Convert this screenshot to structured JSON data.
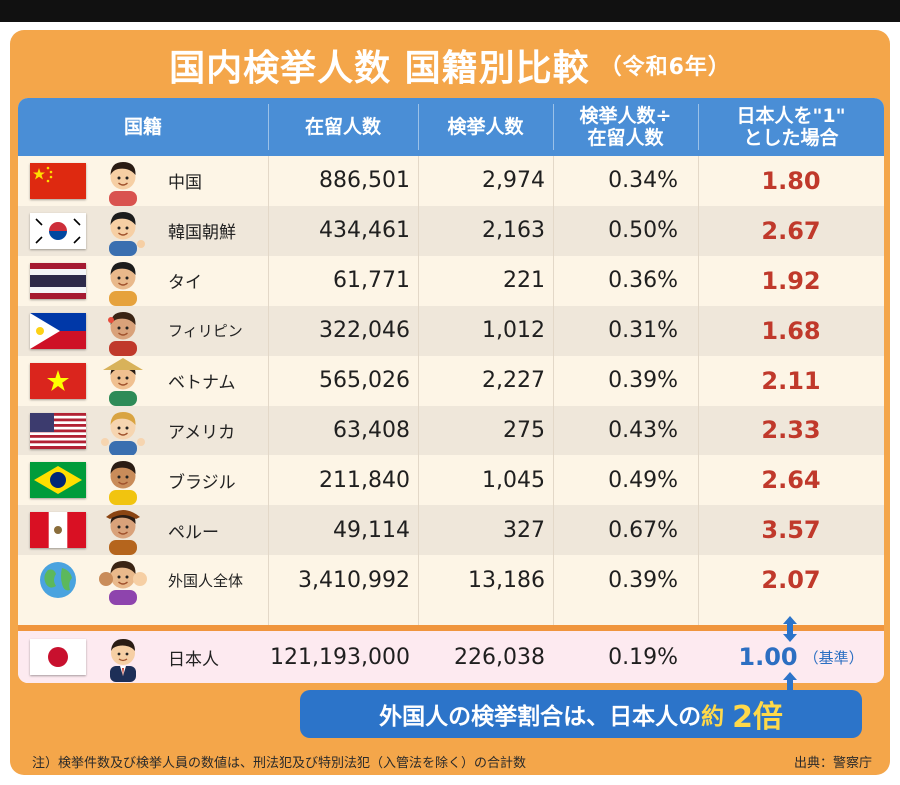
{
  "title": {
    "main": "国内検挙人数 国籍別比較",
    "sub": "（令和6年）"
  },
  "headers": {
    "nationality": "国籍",
    "residents": "在留人数",
    "arrests": "検挙人数",
    "rate_line1": "検挙人数÷",
    "rate_line2": "在留人数",
    "ratio_line1": "日本人を\"1\"",
    "ratio_line2": "とした場合"
  },
  "rows": [
    {
      "name": "中国",
      "residents": "886,501",
      "arrests": "2,974",
      "rate": "0.34%",
      "ratio": "1.80",
      "flag": "china-flag"
    },
    {
      "name": "韓国朝鮮",
      "residents": "434,461",
      "arrests": "2,163",
      "rate": "0.50%",
      "ratio": "2.67",
      "flag": "korea-flag"
    },
    {
      "name": "タイ",
      "residents": "61,771",
      "arrests": "221",
      "rate": "0.36%",
      "ratio": "1.92",
      "flag": "thailand-flag"
    },
    {
      "name": "フィリピン",
      "residents": "322,046",
      "arrests": "1,012",
      "rate": "0.31%",
      "ratio": "1.68",
      "flag": "philippines-flag"
    },
    {
      "name": "ベトナム",
      "residents": "565,026",
      "arrests": "2,227",
      "rate": "0.39%",
      "ratio": "2.11",
      "flag": "vietnam-flag"
    },
    {
      "name": "アメリカ",
      "residents": "63,408",
      "arrests": "275",
      "rate": "0.43%",
      "ratio": "2.33",
      "flag": "usa-flag"
    },
    {
      "name": "ブラジル",
      "residents": "211,840",
      "arrests": "1,045",
      "rate": "0.49%",
      "ratio": "2.64",
      "flag": "brazil-flag"
    },
    {
      "name": "ペルー",
      "residents": "49,114",
      "arrests": "327",
      "rate": "0.67%",
      "ratio": "3.57",
      "flag": "peru-flag"
    },
    {
      "name": "外国人全体",
      "residents": "3,410,992",
      "arrests": "13,186",
      "rate": "0.39%",
      "ratio": "2.07",
      "flag": "globe-icon"
    }
  ],
  "japan": {
    "name": "日本人",
    "residents": "121,193,000",
    "arrests": "226,038",
    "rate": "0.19%",
    "ratio": "1.00",
    "base": "（基準）",
    "flag": "japan-flag"
  },
  "banner": {
    "part1": "外国人の検挙割合は、日本人の",
    "accent": "約",
    "big": "2倍"
  },
  "note": "注）検挙件数及び検挙人員の数値は、刑法犯及び特別法犯（入管法を除く）の合計数",
  "source": "出典：警察庁",
  "colors": {
    "frame_orange": "#f4a64a",
    "header_blue": "#4a8ed6",
    "ratio_red": "#c0392b",
    "japan_blue": "#2c6fc2",
    "banner_blue": "#2c74c9",
    "banner_yellow": "#ffd94a"
  }
}
